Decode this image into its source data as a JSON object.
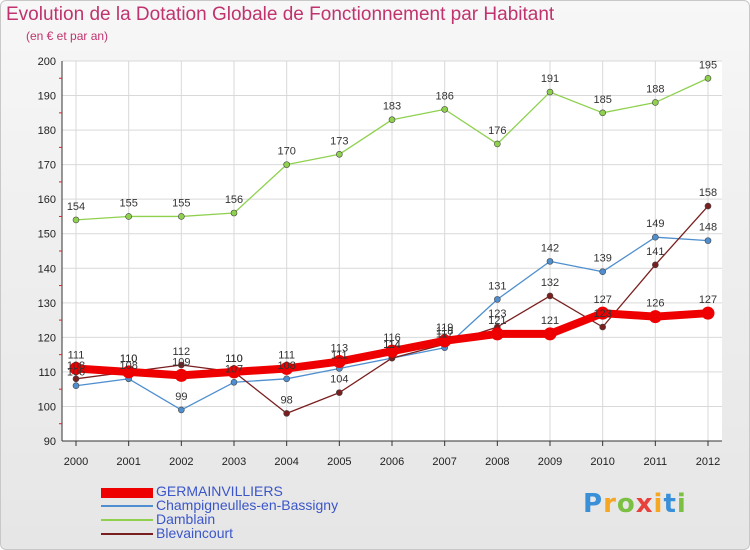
{
  "header": {
    "title": "Evolution de la Dotation Globale de Fonctionnement par Habitant",
    "subtitle": "(en € et par an)"
  },
  "brand": {
    "letters": [
      "P",
      "r",
      "o",
      "x",
      "i",
      "t",
      "i"
    ],
    "colors": [
      "#3a8fd9",
      "#f5a623",
      "#7bc043",
      "#e8403a",
      "#f5a623",
      "#3a8fd9",
      "#7bc043"
    ]
  },
  "chart_data": {
    "type": "line",
    "title": "Evolution de la Dotation Globale de Fonctionnement par Habitant",
    "subtitle": "(en € et par an)",
    "x": [
      "2000",
      "2001",
      "2002",
      "2003",
      "2004",
      "2005",
      "2006",
      "2007",
      "2008",
      "2009",
      "2010",
      "2011",
      "2012"
    ],
    "ylim": [
      90,
      200
    ],
    "yticks": [
      90,
      100,
      110,
      120,
      130,
      140,
      150,
      160,
      170,
      180,
      190,
      200
    ],
    "grid": true,
    "legend_position": "bottom-left",
    "series": [
      {
        "name": "GERMAINVILLIERS",
        "color": "#ee0000",
        "values": [
          111,
          110,
          109,
          110,
          111,
          113,
          116,
          119,
          121,
          121,
          127,
          126,
          127
        ]
      },
      {
        "name": "Champigneulles-en-Bassigny",
        "color": "#4f8fcf",
        "values": [
          106,
          108,
          99,
          107,
          108,
          111,
          114,
          117,
          131,
          142,
          139,
          149,
          148
        ]
      },
      {
        "name": "Damblain",
        "color": "#8fd14f",
        "values": [
          154,
          155,
          155,
          156,
          170,
          173,
          183,
          186,
          176,
          191,
          185,
          188,
          195
        ]
      },
      {
        "name": "Blevaincourt",
        "color": "#7a1f1f",
        "values": [
          108,
          110,
          112,
          110,
          98,
          104,
          114,
          118,
          123,
          132,
          123,
          141,
          158
        ]
      }
    ]
  }
}
